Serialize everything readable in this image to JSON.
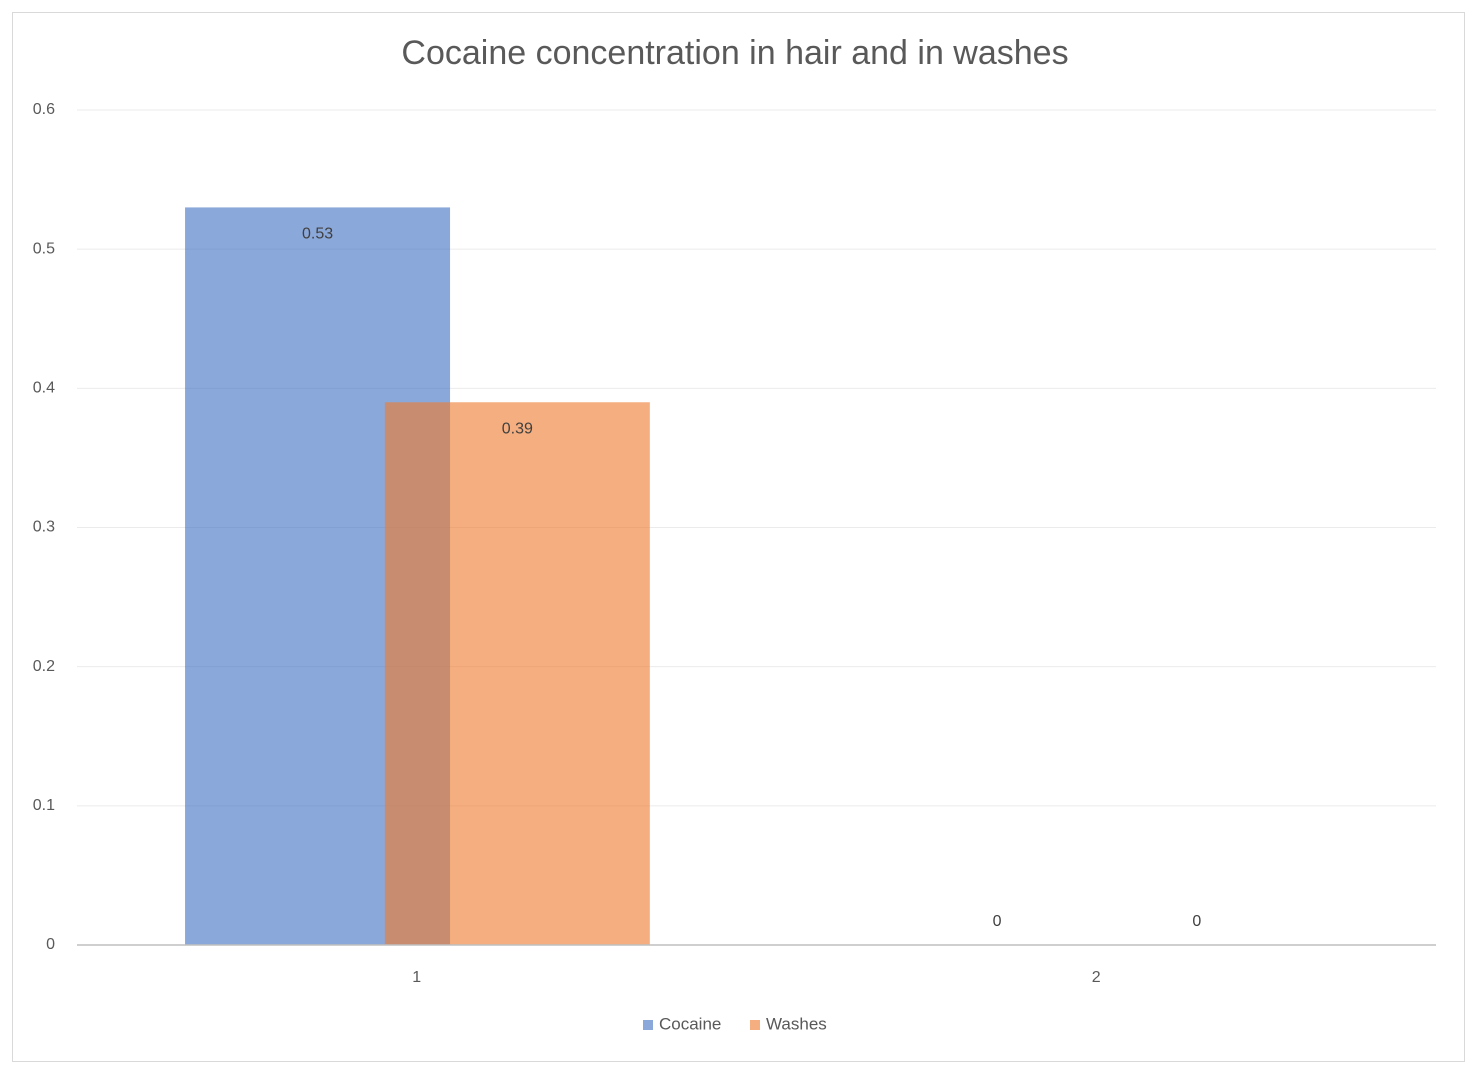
{
  "chart_data": {
    "type": "bar",
    "title": "Cocaine concentration in hair and in washes",
    "categories": [
      "1",
      "2"
    ],
    "series": [
      {
        "name": "Cocaine",
        "color": "#4472c4",
        "values": [
          0.53,
          0
        ]
      },
      {
        "name": "Washes",
        "color": "#ed7d31",
        "values": [
          0.39,
          0
        ]
      }
    ],
    "ylim": [
      0,
      0.6
    ],
    "yticks": [
      0,
      0.1,
      0.2,
      0.3,
      0.4,
      0.5,
      0.6
    ],
    "grid": true,
    "legend": "bottom"
  }
}
